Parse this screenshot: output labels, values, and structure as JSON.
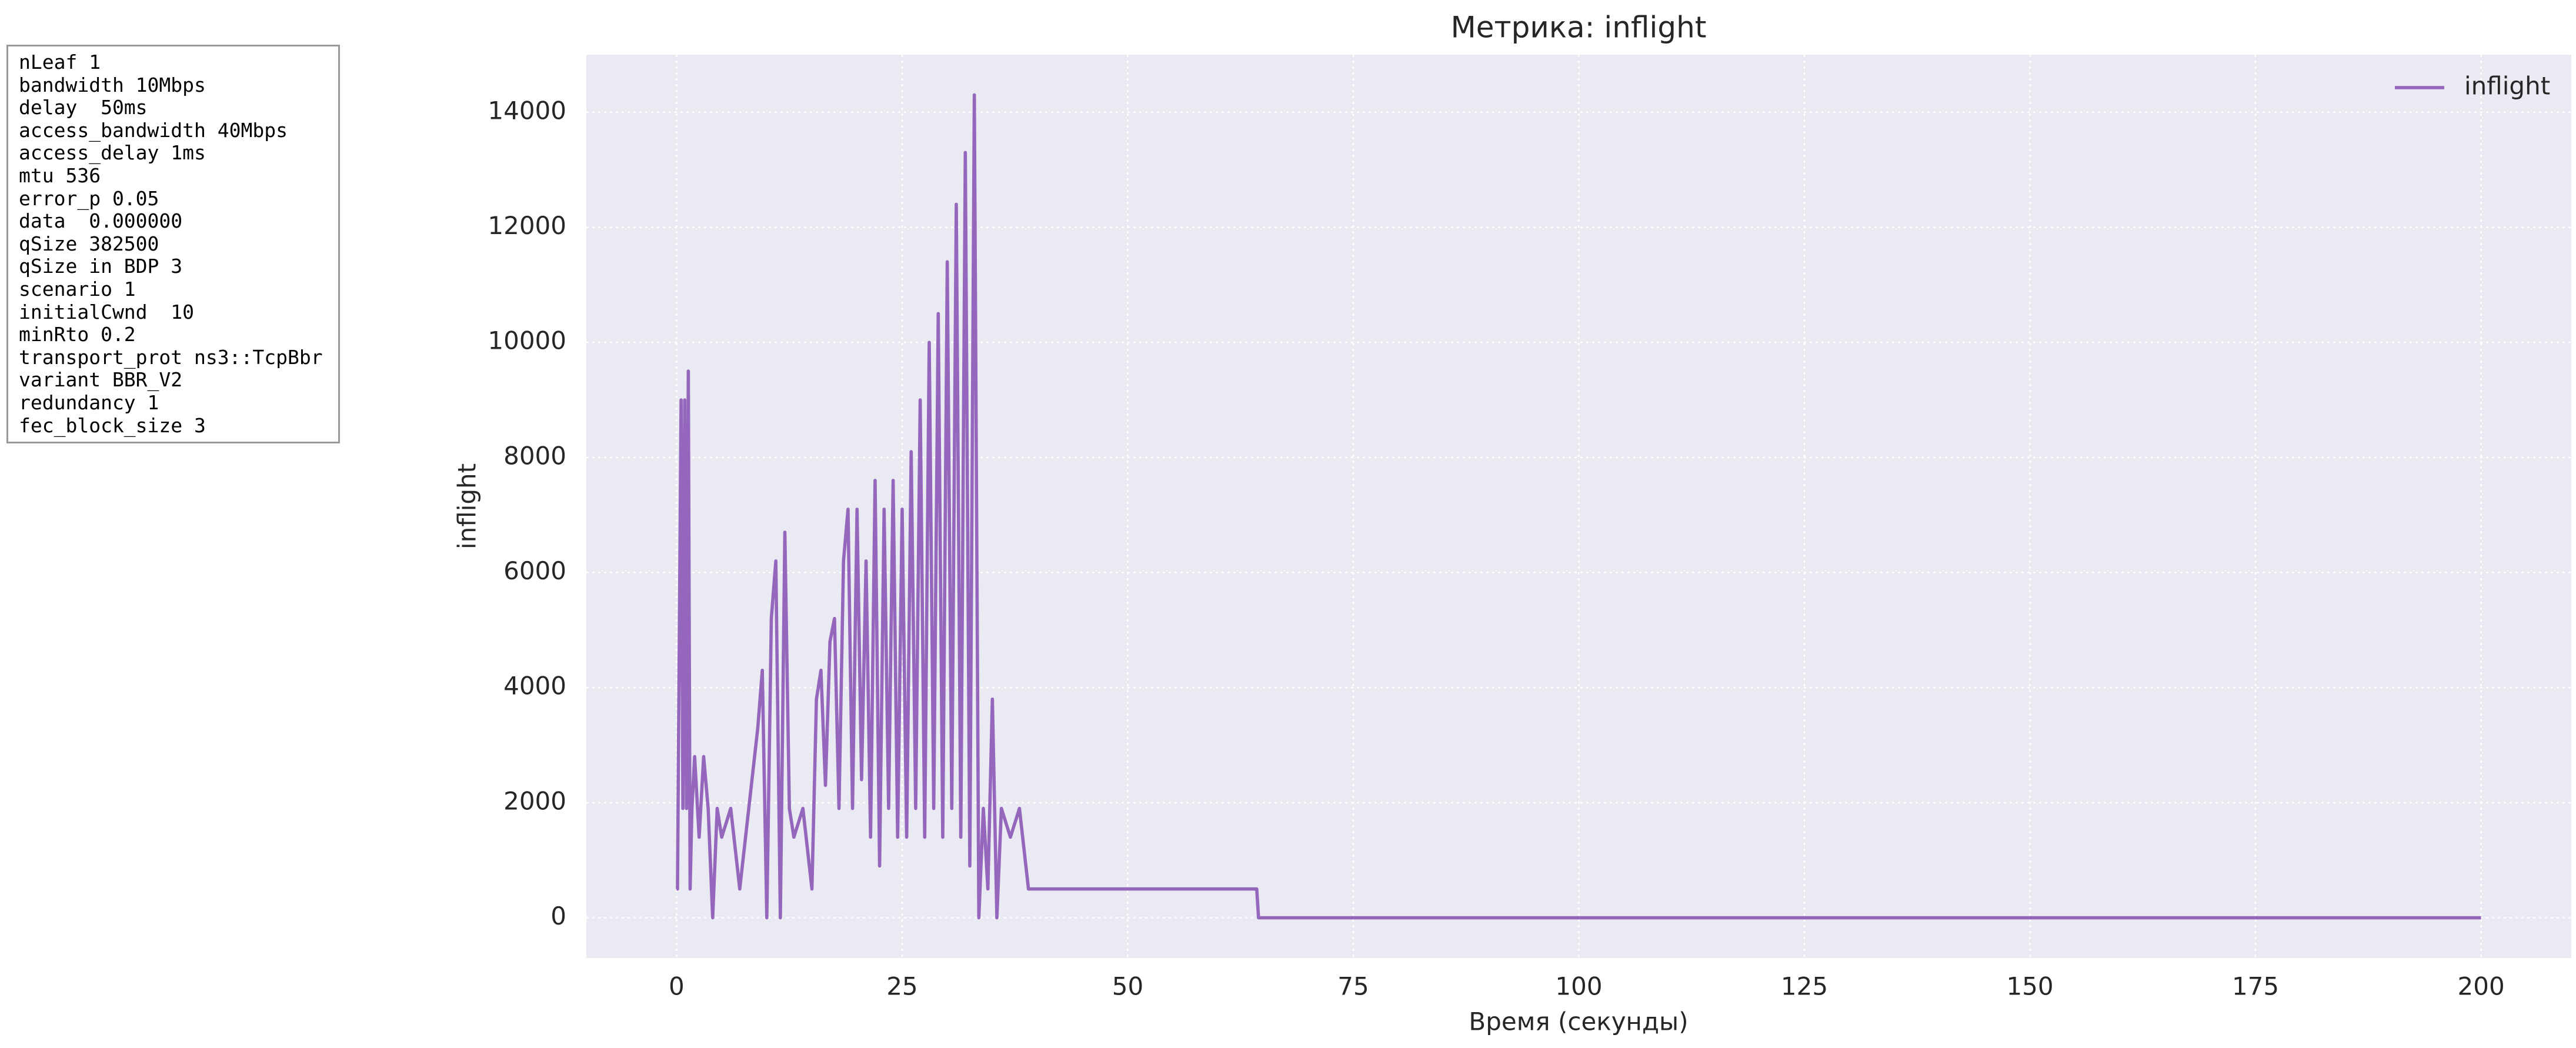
{
  "info_box": [
    "nLeaf 1",
    "bandwidth 10Mbps",
    "delay  50ms",
    "access_bandwidth 40Mbps",
    "access_delay 1ms",
    "mtu 536",
    "error_p 0.05",
    "data  0.000000",
    "qSize 382500",
    "qSize in BDP 3",
    "scenario 1",
    "initialCwnd  10",
    "minRto 0.2",
    "transport_prot ns3::TcpBbr",
    "variant BBR_V2",
    "redundancy 1",
    "fec_block_size 3"
  ],
  "chart_data": {
    "type": "line",
    "title": "Метрика: inflight",
    "xlabel": "Время (секунды)",
    "ylabel": "inflight",
    "x": [
      0,
      0.1,
      0.3,
      0.5,
      0.7,
      0.9,
      1.1,
      1.3,
      1.5,
      1.7,
      2,
      2.5,
      3,
      3.5,
      4,
      4.5,
      5,
      6,
      7,
      8,
      9,
      9.5,
      10,
      10.5,
      11,
      11.5,
      12,
      12.5,
      13,
      14,
      15,
      15.5,
      16,
      16.5,
      17,
      17.5,
      18,
      18.5,
      19,
      19.5,
      20,
      20.5,
      21,
      21.5,
      22,
      22.5,
      23,
      23.5,
      24,
      24.5,
      25,
      25.5,
      26,
      26.5,
      27,
      27.5,
      28,
      28.5,
      29,
      29.5,
      30,
      30.5,
      31,
      31.5,
      32,
      32.5,
      33,
      33.5,
      34,
      34.5,
      35,
      35.5,
      36,
      37,
      38,
      39,
      64.3,
      64.5,
      200
    ],
    "series": [
      {
        "name": "inflight",
        "color": "#9467bd",
        "values": [
          500,
          500,
          4800,
          9000,
          1900,
          9000,
          1900,
          9500,
          500,
          1900,
          2800,
          1400,
          2800,
          1900,
          0,
          1900,
          1400,
          1900,
          500,
          1900,
          3300,
          4300,
          0,
          5200,
          6200,
          0,
          6700,
          1900,
          1400,
          1900,
          500,
          3800,
          4300,
          2300,
          4800,
          5200,
          1900,
          6200,
          7100,
          1900,
          7100,
          2400,
          6200,
          1400,
          7600,
          900,
          7100,
          1900,
          7600,
          1400,
          7100,
          1400,
          8100,
          1900,
          9000,
          1400,
          10000,
          1900,
          10500,
          1400,
          11400,
          1900,
          12400,
          1400,
          13300,
          900,
          14300,
          0,
          1900,
          500,
          3800,
          0,
          1900,
          1400,
          1900,
          500,
          500,
          0,
          0
        ]
      }
    ],
    "xlim": [
      -10,
      210
    ],
    "ylim": [
      -700,
      15000
    ],
    "xticks": [
      0,
      25,
      50,
      75,
      100,
      125,
      150,
      175,
      200
    ],
    "yticks": [
      0,
      2000,
      4000,
      6000,
      8000,
      10000,
      12000,
      14000
    ],
    "grid": true,
    "legend": "upper right"
  }
}
